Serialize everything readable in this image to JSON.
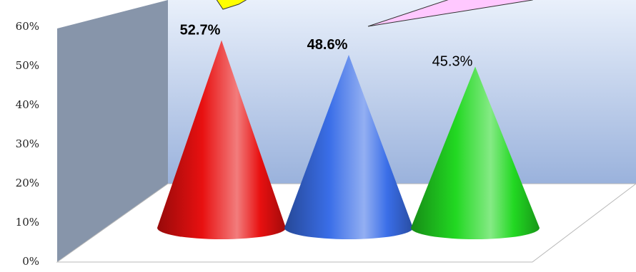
{
  "chart_data": {
    "type": "bar",
    "shape": "cone-3d",
    "ylim": [
      0,
      60
    ],
    "y_ticks": [
      "0%",
      "10%",
      "20%",
      "30%",
      "40%",
      "50%",
      "60%"
    ],
    "categories": [
      "",
      "",
      ""
    ],
    "values": [
      52.7,
      48.6,
      45.3
    ],
    "value_labels": [
      "52.7%",
      "48.6%",
      "45.3%"
    ],
    "label_bold": [
      true,
      true,
      false
    ],
    "colors": [
      "#e81010",
      "#3a6ee8",
      "#22d822"
    ],
    "callout_colors": [
      "#ffff00",
      "#ffc8ff"
    ],
    "wall_gradient": [
      "#e9f0fb",
      "#9ab2dc"
    ],
    "side_wall_color": "#8795aa",
    "grid": false
  }
}
